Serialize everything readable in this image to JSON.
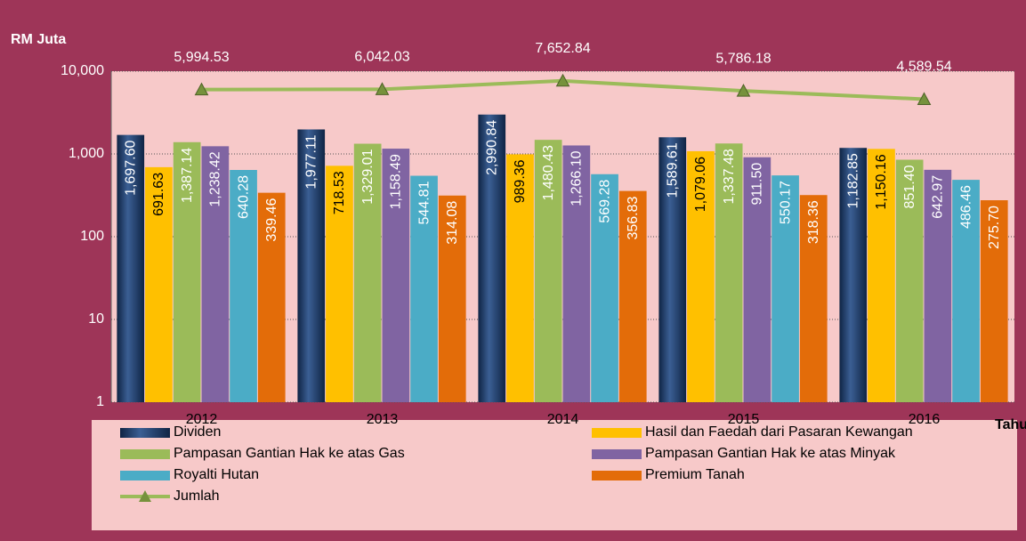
{
  "chart_data": {
    "type": "bar",
    "y_label": "RM Juta",
    "x_label": "Tahun",
    "log_scale": true,
    "grid": true,
    "categories": [
      "2012",
      "2013",
      "2014",
      "2015",
      "2016"
    ],
    "ylim": [
      1,
      10000
    ],
    "yticks": [
      1,
      10,
      100,
      {
        "value": 1000,
        "label": "1,000"
      },
      {
        "value": 10000,
        "label": "10,000"
      }
    ],
    "series": [
      {
        "name": "Dividen",
        "color": "#1f3d6e",
        "values": [
          1697.6,
          1977.11,
          2990.84,
          1589.61,
          1182.85
        ],
        "value_labels": [
          "1,697.60",
          "1,977.11",
          "2,990.84",
          "1,589.61",
          "1,182.85"
        ]
      },
      {
        "name": "Hasil dan Faedah dari Pasaran Kewangan",
        "color": "#ffc000",
        "values": [
          691.63,
          718.53,
          989.36,
          1079.06,
          1150.16
        ],
        "value_labels": [
          "691.63",
          "718.53",
          "989.36",
          "1,079.06",
          "1,150.16"
        ]
      },
      {
        "name": "Pampasan Gantian Hak ke atas Gas",
        "color": "#9bbb59",
        "values": [
          1387.14,
          1329.01,
          1480.43,
          1337.48,
          851.4
        ],
        "value_labels": [
          "1,387.14",
          "1,329.01",
          "1,480.43",
          "1,337.48",
          "851.40"
        ]
      },
      {
        "name": "Pampasan Gantian Hak ke atas Minyak",
        "color": "#8064a2",
        "values": [
          1238.42,
          1158.49,
          1266.1,
          911.5,
          642.97
        ],
        "value_labels": [
          "1,238.42",
          "1,158.49",
          "1,266.10",
          "911.50",
          "642.97"
        ]
      },
      {
        "name": "Royalti Hutan",
        "color": "#4bacc6",
        "values": [
          640.28,
          544.81,
          569.28,
          550.17,
          486.46
        ],
        "value_labels": [
          "640.28",
          "544.81",
          "569.28",
          "550.17",
          "486.46"
        ]
      },
      {
        "name": "Premium Tanah",
        "color": "#e36c09",
        "values": [
          339.46,
          314.08,
          356.83,
          318.36,
          275.7
        ],
        "value_labels": [
          "339.46",
          "314.08",
          "356.83",
          "318.36",
          "275.70"
        ]
      },
      {
        "name": "Jumlah",
        "type": "line",
        "color": "#9bbb59",
        "values": [
          5994.53,
          6042.03,
          7652.84,
          5786.18,
          4589.54
        ],
        "value_labels": [
          "5,994.53",
          "6,042.03",
          "7,652.84",
          "5,786.18",
          "4,589.54"
        ]
      }
    ]
  }
}
